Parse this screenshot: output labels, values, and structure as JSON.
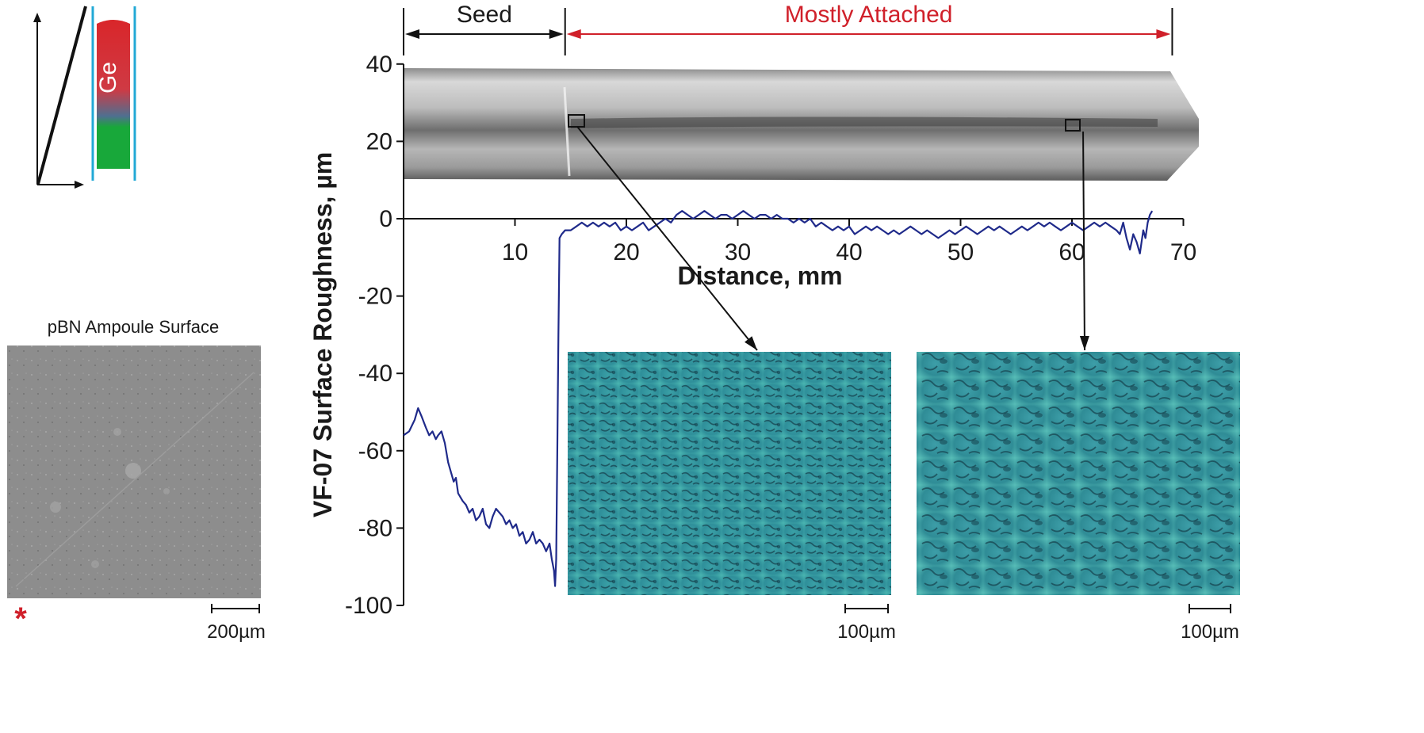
{
  "schematic": {
    "crystal_label": "Ge",
    "colors": {
      "melt": "#d9262a",
      "seed": "#18a83a",
      "ampoule_wall": "#22a9d6"
    }
  },
  "ampoule_micrograph": {
    "title": "pBN Ampoule Surface",
    "asterisk": "*",
    "scale_bar": "200µm"
  },
  "regions": {
    "seed": {
      "label": "Seed",
      "from": 0,
      "to": 14.5
    },
    "attached": {
      "label": "Mostly Attached",
      "from": 14.5,
      "to": 69
    }
  },
  "micrographs": [
    {
      "scale_bar": "100µm",
      "location_mm": 15.6
    },
    {
      "scale_bar": "100µm",
      "location_mm": 61.0
    }
  ],
  "chart_data": {
    "type": "line",
    "xlabel": "Distance, mm",
    "ylabel": "VF-07 Surface Roughness, µm",
    "xlim": [
      0,
      70
    ],
    "ylim": [
      -100,
      40
    ],
    "xticks": [
      10,
      20,
      30,
      40,
      50,
      60,
      70
    ],
    "yticks": [
      40,
      20,
      0,
      -20,
      -40,
      -60,
      -80,
      -100
    ],
    "grid": false,
    "series": [
      {
        "color": "#1f2a8a",
        "x": [
          0.0,
          0.5,
          1.0,
          1.3,
          1.6,
          2.0,
          2.3,
          2.6,
          2.9,
          3.1,
          3.4,
          3.7,
          4.0,
          4.3,
          4.5,
          4.7,
          4.9,
          5.1,
          5.3,
          5.6,
          5.9,
          6.2,
          6.5,
          6.8,
          7.1,
          7.4,
          7.7,
          8.0,
          8.3,
          8.6,
          8.9,
          9.2,
          9.5,
          9.8,
          10.1,
          10.4,
          10.7,
          11.0,
          11.3,
          11.6,
          11.9,
          12.2,
          12.5,
          12.8,
          13.1,
          13.3,
          13.5,
          13.6,
          13.7,
          13.8,
          13.9,
          14.0,
          14.2,
          14.5,
          15.0,
          15.5,
          16.0,
          16.5,
          17.0,
          17.5,
          18.0,
          18.5,
          19.0,
          19.5,
          20.0,
          20.5,
          21.0,
          21.5,
          22.0,
          22.5,
          23.0,
          23.5,
          24.0,
          24.5,
          25.0,
          25.5,
          26.0,
          26.5,
          27.0,
          27.5,
          28.0,
          28.5,
          29.0,
          29.5,
          30.0,
          30.5,
          31.0,
          31.5,
          32.0,
          32.5,
          33.0,
          33.5,
          34.0,
          34.5,
          35.0,
          35.5,
          36.0,
          36.5,
          37.0,
          37.5,
          38.0,
          38.5,
          39.0,
          39.5,
          40.0,
          40.5,
          41.0,
          41.5,
          42.0,
          42.5,
          43.0,
          43.5,
          44.0,
          44.5,
          45.0,
          45.5,
          46.0,
          46.5,
          47.0,
          47.5,
          48.0,
          48.5,
          49.0,
          49.5,
          50.0,
          50.5,
          51.0,
          51.5,
          52.0,
          52.5,
          53.0,
          53.5,
          54.0,
          54.5,
          55.0,
          55.5,
          56.0,
          56.5,
          57.0,
          57.5,
          58.0,
          58.5,
          59.0,
          59.5,
          60.0,
          60.5,
          61.0,
          61.5,
          62.0,
          62.5,
          63.0,
          63.5,
          64.0,
          64.3,
          64.6,
          64.9,
          65.2,
          65.5,
          65.8,
          66.1,
          66.4,
          66.6,
          66.8,
          67.0,
          67.2
        ],
        "y": [
          -56,
          -55,
          -52,
          -49,
          -51,
          -54,
          -56,
          -55,
          -57,
          -56,
          -55,
          -58,
          -63,
          -66,
          -68,
          -67,
          -71,
          -72,
          -73,
          -74,
          -76,
          -75,
          -78,
          -77,
          -75,
          -79,
          -80,
          -77,
          -75,
          -76,
          -77,
          -79,
          -78,
          -80,
          -79,
          -82,
          -81,
          -84,
          -83,
          -81,
          -84,
          -83,
          -84,
          -86,
          -84,
          -88,
          -91,
          -95,
          -88,
          -60,
          -30,
          -5,
          -4,
          -3,
          -3,
          -2,
          -1,
          -2,
          -1,
          -2,
          -1,
          -2,
          -1,
          -3,
          -2,
          -3,
          -2,
          -1,
          -3,
          -2,
          -1,
          0,
          -1,
          1,
          2,
          1,
          0,
          1,
          2,
          1,
          0,
          1,
          1,
          0,
          1,
          2,
          1,
          0,
          1,
          1,
          0,
          1,
          0,
          0,
          -1,
          0,
          -1,
          0,
          -2,
          -1,
          -2,
          -3,
          -2,
          -3,
          -2,
          -4,
          -3,
          -2,
          -3,
          -2,
          -3,
          -4,
          -3,
          -4,
          -3,
          -2,
          -3,
          -4,
          -3,
          -4,
          -5,
          -4,
          -3,
          -4,
          -3,
          -2,
          -3,
          -4,
          -3,
          -2,
          -3,
          -2,
          -3,
          -4,
          -3,
          -2,
          -3,
          -2,
          -1,
          -2,
          -1,
          -2,
          -3,
          -2,
          -1,
          -2,
          -3,
          -2,
          -1,
          -2,
          -1,
          -2,
          -3,
          -4,
          -1,
          -5,
          -8,
          -4,
          -6,
          -9,
          -3,
          -5,
          -1,
          1,
          2
        ]
      }
    ]
  }
}
